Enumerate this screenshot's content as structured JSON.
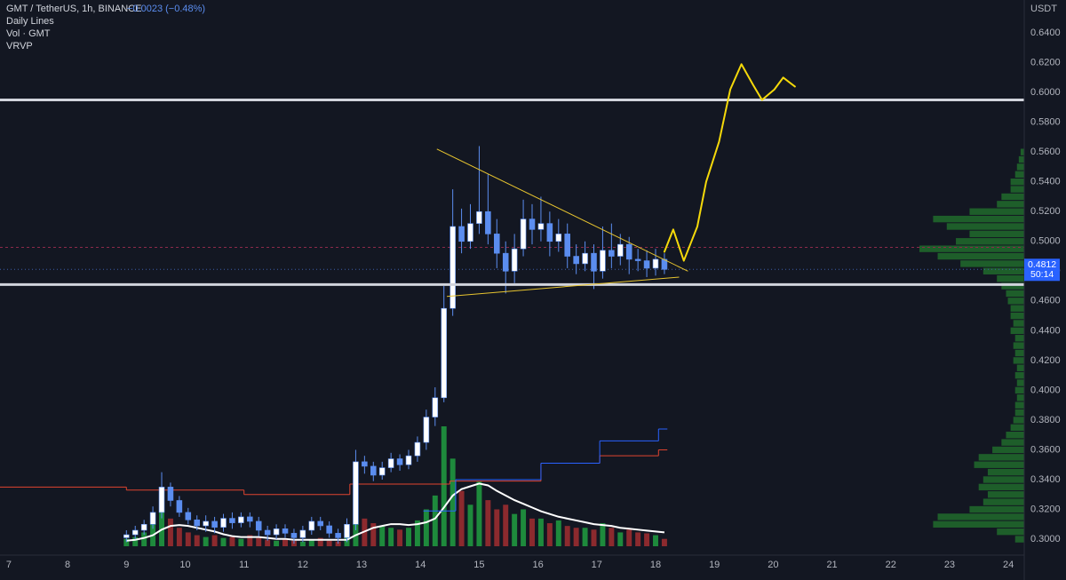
{
  "chart_data": {
    "type": "candlestick",
    "legend": [
      "GMT / TetherUS, 1h, BINANCE",
      "Daily Lines",
      "Vol · GMT",
      "VRVP"
    ],
    "change": "−0.0023 (−0.48%)",
    "y_unit": "USDT",
    "up_color": "#ffffff",
    "down_color": "#5b8def",
    "vol_up_color": "#1e8a3c",
    "vol_down_color": "#8c2a2e",
    "xlim": [
      6.85,
      24.27
    ],
    "xticks": [
      7,
      8,
      9,
      10,
      11,
      12,
      13,
      14,
      15,
      16,
      17,
      18,
      19,
      20,
      21,
      22,
      23,
      24
    ],
    "ylim": [
      0.2893,
      0.6621
    ],
    "yticks": [
      {
        "value": 0.3,
        "label": "0.3000"
      },
      {
        "value": 0.32,
        "label": "0.3200"
      },
      {
        "value": 0.34,
        "label": "0.3400"
      },
      {
        "value": 0.36,
        "label": "0.3600"
      },
      {
        "value": 0.38,
        "label": "0.3800"
      },
      {
        "value": 0.4,
        "label": "0.4000"
      },
      {
        "value": 0.42,
        "label": "0.4200"
      },
      {
        "value": 0.44,
        "label": "0.4400"
      },
      {
        "value": 0.46,
        "label": "0.4600"
      },
      {
        "value": 0.48,
        "label": "0.4800"
      },
      {
        "value": 0.5,
        "label": "0.5000"
      },
      {
        "value": 0.52,
        "label": "0.5200"
      },
      {
        "value": 0.54,
        "label": "0.5400"
      },
      {
        "value": 0.56,
        "label": "0.5600"
      },
      {
        "value": 0.58,
        "label": "0.5800"
      },
      {
        "value": 0.6,
        "label": "0.6000"
      },
      {
        "value": 0.62,
        "label": "0.6200"
      },
      {
        "value": 0.64,
        "label": "0.6400"
      }
    ],
    "grid": true,
    "x": [
      9.0,
      9.15,
      9.3,
      9.45,
      9.6,
      9.75,
      9.9,
      10.05,
      10.2,
      10.35,
      10.5,
      10.65,
      10.8,
      10.95,
      11.1,
      11.25,
      11.4,
      11.55,
      11.7,
      11.85,
      12.0,
      12.15,
      12.3,
      12.45,
      12.6,
      12.75,
      12.9,
      13.05,
      13.2,
      13.35,
      13.5,
      13.65,
      13.8,
      13.95,
      14.1,
      14.25,
      14.4,
      14.55,
      14.7,
      14.85,
      15.0,
      15.15,
      15.3,
      15.45,
      15.6,
      15.75,
      15.9,
      16.05,
      16.2,
      16.35,
      16.5,
      16.65,
      16.8,
      16.95,
      17.1,
      17.25,
      17.4,
      17.55,
      17.7,
      17.85,
      18.0,
      18.15
    ],
    "open": [
      0.301,
      0.303,
      0.306,
      0.31,
      0.318,
      0.335,
      0.326,
      0.318,
      0.313,
      0.309,
      0.312,
      0.308,
      0.314,
      0.311,
      0.315,
      0.312,
      0.306,
      0.303,
      0.307,
      0.304,
      0.301,
      0.306,
      0.312,
      0.309,
      0.304,
      0.301,
      0.31,
      0.352,
      0.349,
      0.343,
      0.348,
      0.354,
      0.35,
      0.356,
      0.365,
      0.382,
      0.395,
      0.455,
      0.51,
      0.5,
      0.512,
      0.52,
      0.505,
      0.492,
      0.48,
      0.495,
      0.515,
      0.508,
      0.512,
      0.5,
      0.505,
      0.49,
      0.485,
      0.492,
      0.48,
      0.494,
      0.49,
      0.498,
      0.488,
      0.487,
      0.482,
      0.488
    ],
    "high": [
      0.306,
      0.309,
      0.313,
      0.322,
      0.345,
      0.338,
      0.329,
      0.321,
      0.316,
      0.316,
      0.315,
      0.317,
      0.318,
      0.318,
      0.318,
      0.315,
      0.309,
      0.31,
      0.31,
      0.307,
      0.309,
      0.315,
      0.315,
      0.312,
      0.307,
      0.314,
      0.36,
      0.356,
      0.352,
      0.352,
      0.358,
      0.357,
      0.36,
      0.369,
      0.387,
      0.402,
      0.47,
      0.535,
      0.522,
      0.525,
      0.564,
      0.545,
      0.515,
      0.5,
      0.505,
      0.528,
      0.525,
      0.53,
      0.52,
      0.515,
      0.512,
      0.498,
      0.5,
      0.498,
      0.51,
      0.512,
      0.505,
      0.503,
      0.495,
      0.494,
      0.495,
      0.492
    ],
    "low": [
      0.298,
      0.3,
      0.303,
      0.307,
      0.314,
      0.322,
      0.315,
      0.31,
      0.306,
      0.305,
      0.304,
      0.305,
      0.307,
      0.308,
      0.308,
      0.302,
      0.299,
      0.3,
      0.301,
      0.297,
      0.298,
      0.303,
      0.306,
      0.301,
      0.297,
      0.298,
      0.306,
      0.344,
      0.339,
      0.34,
      0.345,
      0.346,
      0.347,
      0.352,
      0.36,
      0.376,
      0.392,
      0.45,
      0.492,
      0.495,
      0.505,
      0.498,
      0.482,
      0.465,
      0.472,
      0.49,
      0.498,
      0.5,
      0.49,
      0.493,
      0.482,
      0.478,
      0.48,
      0.468,
      0.475,
      0.482,
      0.484,
      0.478,
      0.48,
      0.476,
      0.477,
      0.478
    ],
    "close": [
      0.303,
      0.306,
      0.31,
      0.318,
      0.335,
      0.326,
      0.318,
      0.313,
      0.309,
      0.312,
      0.308,
      0.314,
      0.311,
      0.315,
      0.312,
      0.306,
      0.303,
      0.307,
      0.304,
      0.301,
      0.306,
      0.312,
      0.309,
      0.304,
      0.301,
      0.31,
      0.352,
      0.349,
      0.343,
      0.348,
      0.354,
      0.35,
      0.356,
      0.365,
      0.382,
      0.395,
      0.455,
      0.51,
      0.5,
      0.512,
      0.52,
      0.505,
      0.492,
      0.48,
      0.495,
      0.515,
      0.508,
      0.512,
      0.5,
      0.505,
      0.49,
      0.485,
      0.492,
      0.48,
      0.494,
      0.49,
      0.498,
      0.488,
      0.487,
      0.482,
      0.488,
      0.4812
    ],
    "volume": [
      8,
      10,
      15,
      25,
      45,
      30,
      20,
      15,
      12,
      10,
      12,
      9,
      10,
      8,
      12,
      9,
      7,
      6,
      8,
      6,
      5,
      7,
      9,
      6,
      5,
      10,
      55,
      30,
      25,
      22,
      20,
      18,
      20,
      28,
      40,
      55,
      130,
      95,
      60,
      45,
      70,
      50,
      40,
      45,
      35,
      40,
      30,
      30,
      25,
      28,
      22,
      20,
      20,
      18,
      25,
      20,
      15,
      18,
      15,
      14,
      12,
      8
    ],
    "volume_ma": [
      6,
      7,
      9,
      12,
      18,
      22,
      23,
      22,
      20,
      18,
      16,
      13,
      11,
      10,
      10,
      10,
      9,
      8,
      8,
      7,
      7,
      7,
      7,
      7,
      7,
      7,
      12,
      16,
      20,
      22,
      24,
      24,
      23,
      24,
      26,
      30,
      42,
      55,
      62,
      65,
      68,
      66,
      60,
      55,
      50,
      46,
      42,
      38,
      35,
      32,
      30,
      28,
      26,
      24,
      23,
      22,
      20,
      19,
      18,
      17,
      16,
      15
    ],
    "daily_lines": [
      {
        "color": "#e0442f",
        "x": [
          6.85,
          9.0,
          11.0,
          12.8,
          14.5,
          16.05,
          17.05,
          18.05
        ],
        "values": [
          0.335,
          0.333,
          0.33,
          0.337,
          0.339,
          0.351,
          0.356,
          0.36
        ]
      },
      {
        "color": "#2962ff",
        "x": [
          14.05,
          14.6,
          16.05,
          17.05,
          18.05
        ],
        "values": [
          0.319,
          0.34,
          0.351,
          0.366,
          0.374
        ]
      }
    ],
    "daily_lines_end": 18.2,
    "volume_profile": {
      "color": "#1e5e2a",
      "prices": [
        0.3,
        0.305,
        0.31,
        0.315,
        0.32,
        0.325,
        0.33,
        0.335,
        0.34,
        0.345,
        0.35,
        0.355,
        0.36,
        0.365,
        0.37,
        0.375,
        0.38,
        0.385,
        0.39,
        0.395,
        0.4,
        0.405,
        0.41,
        0.415,
        0.42,
        0.425,
        0.43,
        0.435,
        0.44,
        0.445,
        0.45,
        0.455,
        0.46,
        0.465,
        0.47,
        0.475,
        0.48,
        0.485,
        0.49,
        0.495,
        0.5,
        0.505,
        0.51,
        0.515,
        0.52,
        0.525,
        0.53,
        0.535,
        0.54,
        0.545,
        0.55,
        0.555,
        0.56
      ],
      "values": [
        10,
        30,
        100,
        95,
        60,
        45,
        40,
        50,
        45,
        40,
        55,
        50,
        35,
        25,
        20,
        15,
        12,
        10,
        10,
        8,
        10,
        8,
        10,
        8,
        12,
        10,
        12,
        10,
        15,
        12,
        15,
        15,
        18,
        20,
        25,
        30,
        45,
        70,
        95,
        115,
        75,
        60,
        85,
        100,
        60,
        30,
        25,
        15,
        15,
        10,
        8,
        6,
        4
      ]
    },
    "hlines": [
      0.595,
      0.471
    ],
    "dashed_line": 0.496,
    "trendlines": [
      {
        "x": [
          14.28,
          18.55
        ],
        "values": [
          0.562,
          0.48
        ]
      },
      {
        "x": [
          14.45,
          18.4
        ],
        "values": [
          0.463,
          0.476
        ]
      }
    ],
    "projection": {
      "x": [
        18.15,
        18.3,
        18.48,
        18.71,
        18.86,
        19.08,
        19.27,
        19.46,
        19.66,
        19.81,
        20.02,
        20.17,
        20.37
      ],
      "values": [
        0.493,
        0.508,
        0.487,
        0.51,
        0.54,
        0.567,
        0.602,
        0.619,
        0.605,
        0.595,
        0.602,
        0.61,
        0.604
      ]
    },
    "last_price": 0.4812,
    "countdown": "50:14"
  }
}
